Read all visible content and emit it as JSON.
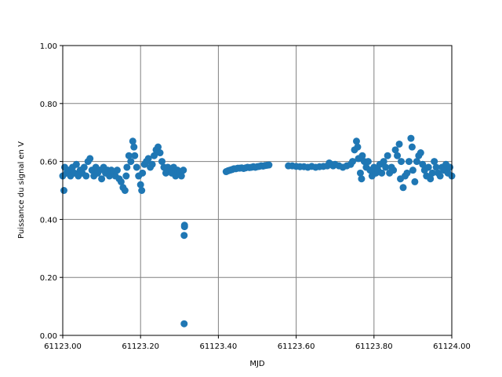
{
  "chart_data": {
    "type": "scatter",
    "xlabel": "MJD",
    "ylabel": "Puissance du signal en V",
    "color": "#1f77b4",
    "grid": true,
    "xlim": [
      61123.0,
      61124.0
    ],
    "ylim": [
      0,
      1
    ],
    "xticks": [
      {
        "value": 61123.0,
        "label": "61123.00"
      },
      {
        "value": 61123.2,
        "label": "61123.20"
      },
      {
        "value": 61123.4,
        "label": "61123.40"
      },
      {
        "value": 61123.6,
        "label": "61123.60"
      },
      {
        "value": 61123.8,
        "label": "61123.80"
      },
      {
        "value": 61124.0,
        "label": "61124.00"
      }
    ],
    "yticks": [
      {
        "value": 0,
        "label": "0.00"
      },
      {
        "value": 0.2,
        "label": "0.20"
      },
      {
        "value": 0.4,
        "label": "0.40"
      },
      {
        "value": 0.6,
        "label": "0.60"
      },
      {
        "value": 0.8,
        "label": "0.80"
      },
      {
        "value": 1,
        "label": "1.00"
      }
    ],
    "x": [
      61123.0,
      61123.003,
      61123.005,
      61123.01,
      61123.015,
      61123.02,
      61123.025,
      61123.03,
      61123.035,
      61123.04,
      61123.045,
      61123.05,
      61123.055,
      61123.06,
      61123.065,
      61123.07,
      61123.075,
      61123.08,
      61123.085,
      61123.09,
      61123.095,
      61123.1,
      61123.105,
      61123.11,
      61123.115,
      61123.12,
      61123.125,
      61123.13,
      61123.135,
      61123.14,
      61123.145,
      61123.15,
      61123.155,
      61123.16,
      61123.163,
      61123.165,
      61123.17,
      61123.175,
      61123.18,
      61123.183,
      61123.185,
      61123.19,
      61123.195,
      61123.2,
      61123.203,
      61123.205,
      61123.21,
      61123.215,
      61123.22,
      61123.225,
      61123.23,
      61123.235,
      61123.24,
      61123.245,
      61123.25,
      61123.255,
      61123.26,
      61123.265,
      61123.27,
      61123.275,
      61123.28,
      61123.285,
      61123.29,
      61123.295,
      61123.3,
      61123.305,
      61123.31,
      61123.313,
      61123.313,
      61123.312,
      61123.312,
      61123.42,
      61123.425,
      61123.43,
      61123.435,
      61123.44,
      61123.445,
      61123.45,
      61123.455,
      61123.46,
      61123.465,
      61123.47,
      61123.475,
      61123.48,
      61123.485,
      61123.49,
      61123.495,
      61123.5,
      61123.505,
      61123.51,
      61123.515,
      61123.52,
      61123.525,
      61123.53,
      61123.58,
      61123.59,
      61123.6,
      61123.61,
      61123.62,
      61123.63,
      61123.64,
      61123.65,
      61123.66,
      61123.67,
      61123.68,
      61123.685,
      61123.69,
      61123.695,
      61123.7,
      61123.71,
      61123.72,
      61123.73,
      61123.74,
      61123.745,
      61123.75,
      61123.755,
      61123.758,
      61123.76,
      61123.765,
      61123.768,
      61123.77,
      61123.775,
      61123.78,
      61123.785,
      61123.79,
      61123.795,
      61123.8,
      61123.805,
      61123.81,
      61123.815,
      61123.82,
      61123.825,
      61123.83,
      61123.835,
      61123.84,
      61123.845,
      61123.85,
      61123.855,
      61123.86,
      61123.865,
      61123.868,
      61123.87,
      61123.875,
      61123.88,
      61123.885,
      61123.89,
      61123.895,
      61123.898,
      61123.9,
      61123.905,
      61123.91,
      61123.915,
      61123.92,
      61123.925,
      61123.93,
      61123.935,
      61123.94,
      61123.945,
      61123.95,
      61123.955,
      61123.96,
      61123.965,
      61123.97,
      61123.975,
      61123.98,
      61123.985,
      61123.99,
      61123.995,
      61124.0
    ],
    "values": [
      0.55,
      0.5,
      0.58,
      0.56,
      0.57,
      0.55,
      0.58,
      0.56,
      0.59,
      0.55,
      0.57,
      0.56,
      0.58,
      0.55,
      0.6,
      0.61,
      0.57,
      0.55,
      0.58,
      0.56,
      0.57,
      0.54,
      0.58,
      0.56,
      0.57,
      0.55,
      0.57,
      0.56,
      0.55,
      0.57,
      0.54,
      0.53,
      0.51,
      0.5,
      0.55,
      0.58,
      0.62,
      0.6,
      0.67,
      0.65,
      0.62,
      0.58,
      0.55,
      0.52,
      0.5,
      0.56,
      0.59,
      0.6,
      0.61,
      0.58,
      0.59,
      0.62,
      0.64,
      0.65,
      0.63,
      0.6,
      0.58,
      0.56,
      0.58,
      0.57,
      0.56,
      0.58,
      0.55,
      0.57,
      0.56,
      0.55,
      0.57,
      0.38,
      0.375,
      0.345,
      0.04,
      0.565,
      0.568,
      0.57,
      0.572,
      0.575,
      0.575,
      0.577,
      0.577,
      0.578,
      0.576,
      0.578,
      0.58,
      0.579,
      0.58,
      0.582,
      0.58,
      0.582,
      0.583,
      0.585,
      0.584,
      0.586,
      0.587,
      0.588,
      0.585,
      0.585,
      0.583,
      0.582,
      0.582,
      0.58,
      0.583,
      0.58,
      0.582,
      0.583,
      0.585,
      0.595,
      0.59,
      0.585,
      0.59,
      0.585,
      0.58,
      0.585,
      0.59,
      0.6,
      0.64,
      0.67,
      0.65,
      0.61,
      0.56,
      0.54,
      0.62,
      0.6,
      0.58,
      0.6,
      0.57,
      0.55,
      0.58,
      0.56,
      0.57,
      0.59,
      0.56,
      0.6,
      0.58,
      0.62,
      0.56,
      0.58,
      0.57,
      0.64,
      0.62,
      0.66,
      0.54,
      0.6,
      0.51,
      0.55,
      0.56,
      0.6,
      0.68,
      0.65,
      0.57,
      0.53,
      0.6,
      0.62,
      0.63,
      0.59,
      0.57,
      0.55,
      0.58,
      0.54,
      0.56,
      0.6,
      0.58,
      0.56,
      0.55,
      0.58,
      0.57,
      0.59,
      0.56,
      0.58,
      0.55
    ]
  }
}
